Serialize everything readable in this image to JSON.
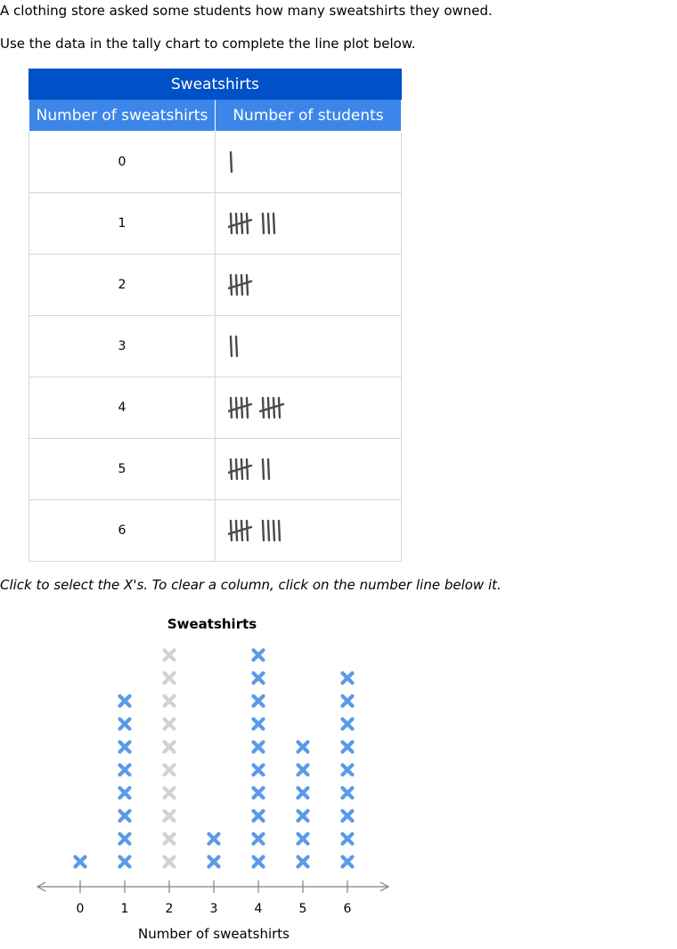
{
  "intro": {
    "line1": "A clothing store asked some students how many sweatshirts they owned.",
    "line2": "Use the data in the tally chart to complete the line plot below."
  },
  "tally_table": {
    "title": "Sweatshirts",
    "headers": [
      "Number of sweatshirts",
      "Number of students"
    ],
    "rows": [
      {
        "value": "0",
        "tally": 1
      },
      {
        "value": "1",
        "tally": 8
      },
      {
        "value": "2",
        "tally": 5
      },
      {
        "value": "3",
        "tally": 2
      },
      {
        "value": "4",
        "tally": 10
      },
      {
        "value": "5",
        "tally": 7
      },
      {
        "value": "6",
        "tally": 9
      }
    ]
  },
  "instruction": "Click to select the X's. To clear a column, click on the number line below it.",
  "line_plot": {
    "title": "Sweatshirts",
    "xlabel": "Number of sweatshirts",
    "ticks": [
      "0",
      "1",
      "2",
      "3",
      "4",
      "5",
      "6"
    ],
    "max_per_column": 10,
    "selected_counts": [
      1,
      8,
      0,
      2,
      10,
      6,
      9
    ],
    "colors": {
      "selected": "#5a9ae8",
      "unselected": "#d2d2d2",
      "axis": "#808080",
      "tally_mark": "#4a4a4a",
      "header_dark": "#0051c7",
      "header_light": "#3c86ea"
    }
  }
}
